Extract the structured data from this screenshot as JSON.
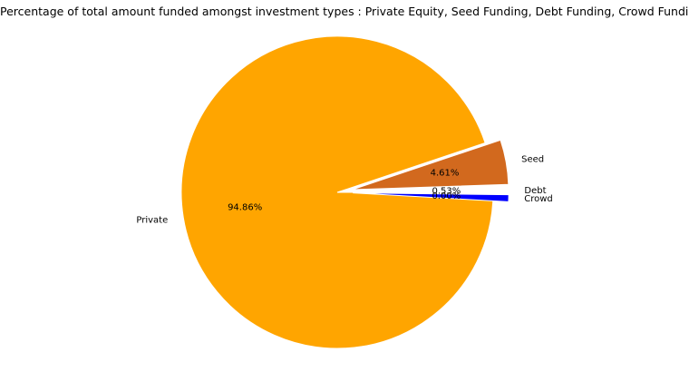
{
  "chart_data": {
    "type": "pie",
    "title": "Percentage of total amount funded amongst investment types : Private Equity, Seed Funding, Debt Funding, Crowd Funding",
    "slices": [
      {
        "label": "Private",
        "value": 94.86,
        "pct_label": "94.86%",
        "color": "#ffa500",
        "explode": 0.0
      },
      {
        "label": "Seed",
        "value": 4.61,
        "pct_label": "4.61%",
        "color": "#d2691e",
        "explode": 0.1
      },
      {
        "label": "Debt",
        "value": 0.53,
        "pct_label": "0.53%",
        "color": "#ffffff",
        "explode": 0.1
      },
      {
        "label": "Crowd",
        "value": 0.0,
        "pct_label": "0.00%",
        "color": "#0000ff",
        "explode": 0.1
      }
    ],
    "start_angle_deg": 0,
    "direction": "clockwise"
  }
}
